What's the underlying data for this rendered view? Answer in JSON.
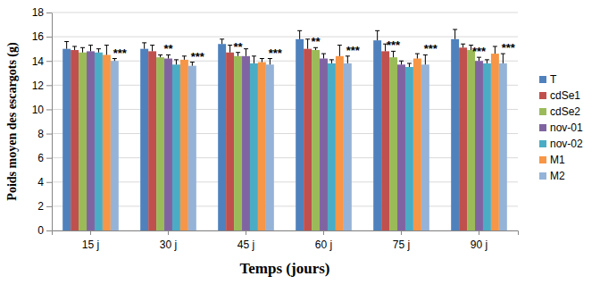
{
  "chart_data": {
    "type": "bar",
    "x_label": "Temps (jours)",
    "y_label": "Poids moyen des escargots (g)",
    "categories": [
      "15 j",
      "30 j",
      "45 j",
      "60 j",
      "75 j",
      "90 j"
    ],
    "ylim": [
      0,
      18
    ],
    "yticks": [
      0,
      2,
      4,
      6,
      8,
      10,
      12,
      14,
      16,
      18
    ],
    "grid": true,
    "legend": "right",
    "series": [
      {
        "name": "T",
        "color": "#4f81bd",
        "values": [
          15.0,
          15.0,
          15.4,
          15.8,
          15.7,
          15.8
        ],
        "errors": [
          0.6,
          0.5,
          0.4,
          0.7,
          0.8,
          0.8
        ],
        "significance": [
          null,
          null,
          null,
          null,
          null,
          null
        ]
      },
      {
        "name": "cdSe1",
        "color": "#c0504d",
        "values": [
          14.9,
          14.8,
          14.7,
          15.0,
          14.8,
          15.1
        ],
        "errors": [
          0.3,
          0.5,
          0.6,
          0.8,
          0.6,
          0.3
        ],
        "significance": [
          null,
          null,
          null,
          null,
          null,
          null
        ]
      },
      {
        "name": "cdSe2",
        "color": "#9bbb59",
        "values": [
          14.7,
          14.3,
          14.4,
          14.9,
          14.3,
          14.9
        ],
        "errors": [
          0.4,
          0.2,
          0.3,
          0.2,
          0.5,
          0.4
        ],
        "significance": [
          null,
          null,
          "**",
          "**",
          "***",
          null
        ]
      },
      {
        "name": "nov-01",
        "color": "#8064a2",
        "values": [
          14.8,
          14.2,
          14.4,
          14.2,
          13.7,
          14.0
        ],
        "errors": [
          0.5,
          0.3,
          0.6,
          0.4,
          0.3,
          0.3
        ],
        "significance": [
          null,
          "**",
          null,
          null,
          null,
          "***"
        ]
      },
      {
        "name": "nov-02",
        "color": "#4bacc6",
        "values": [
          14.7,
          13.7,
          13.8,
          13.8,
          13.5,
          13.8
        ],
        "errors": [
          0.3,
          0.4,
          0.6,
          0.3,
          0.3,
          0.3
        ],
        "significance": [
          null,
          null,
          null,
          null,
          null,
          null
        ]
      },
      {
        "name": "M1",
        "color": "#f79646",
        "values": [
          14.5,
          14.1,
          13.9,
          14.4,
          14.2,
          14.6
        ],
        "errors": [
          0.8,
          0.3,
          0.3,
          0.9,
          0.4,
          0.6
        ],
        "significance": [
          null,
          null,
          null,
          null,
          null,
          null
        ]
      },
      {
        "name": "M2",
        "color": "#95b3d7",
        "values": [
          14.0,
          13.6,
          13.7,
          13.8,
          13.7,
          13.8
        ],
        "errors": [
          0.2,
          0.3,
          0.5,
          0.6,
          0.8,
          0.8
        ],
        "significance": [
          "***",
          "***",
          "***",
          "***",
          "***",
          "***"
        ]
      }
    ]
  }
}
